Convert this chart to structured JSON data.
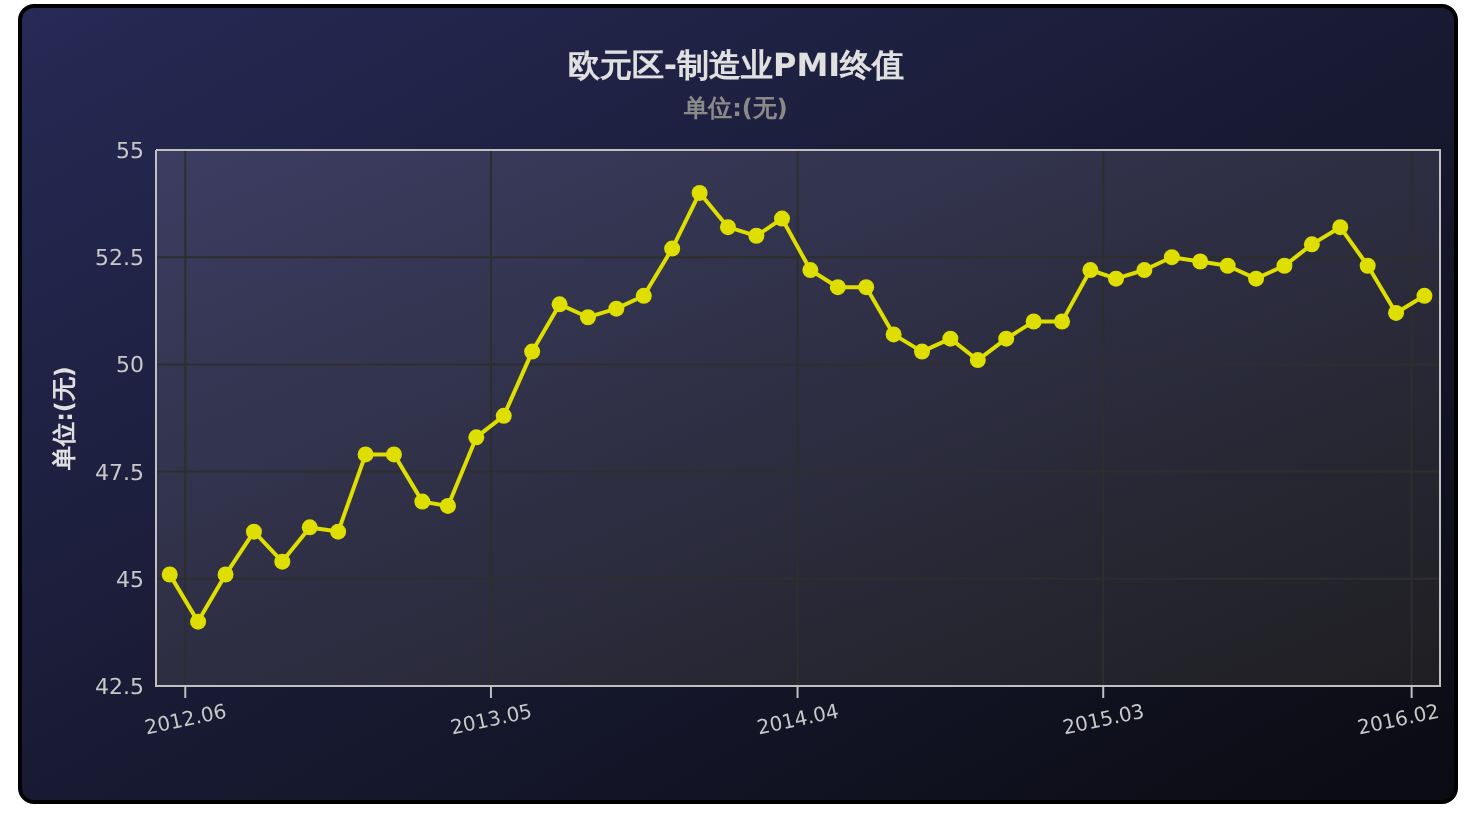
{
  "chart_data": {
    "type": "line",
    "title": "欧元区-制造业PMI终值",
    "subtitle": "单位:(无)",
    "ylabel": "单位:(无)",
    "x": [
      "2012-05-15",
      "2012-06-15",
      "2012-07-15",
      "2012-08-15",
      "2012-09-15",
      "2012-10-15",
      "2012-11-15",
      "2012-12-15",
      "2013-01-15",
      "2013-02-15",
      "2013-03-15",
      "2013-04-15",
      "2013-05-15",
      "2013-06-15",
      "2013-07-15",
      "2013-08-15",
      "2013-09-15",
      "2013-10-15",
      "2013-11-15",
      "2013-12-15",
      "2014-01-15",
      "2014-02-15",
      "2014-03-15",
      "2014-04-15",
      "2014-05-15",
      "2014-06-15",
      "2014-07-15",
      "2014-08-15",
      "2014-09-15",
      "2014-10-15",
      "2014-11-15",
      "2014-12-15",
      "2015-01-15",
      "2015-02-15",
      "2015-03-15",
      "2015-04-15",
      "2015-05-15",
      "2015-06-15",
      "2015-07-15",
      "2015-08-15",
      "2015-09-15",
      "2015-10-15",
      "2015-11-15",
      "2015-12-15",
      "2016-01-15",
      "2016-02-15"
    ],
    "series": [
      {
        "color": "#dede00",
        "values": [
          45.1,
          44.0,
          45.1,
          46.1,
          45.4,
          46.2,
          46.1,
          47.9,
          47.9,
          46.8,
          46.7,
          48.3,
          48.8,
          50.3,
          51.4,
          51.1,
          51.3,
          51.6,
          52.7,
          54.0,
          53.2,
          53.0,
          53.4,
          52.2,
          51.8,
          51.8,
          50.7,
          50.3,
          50.6,
          50.1,
          50.6,
          51.0,
          51.0,
          52.2,
          52.0,
          52.2,
          52.5,
          52.4,
          52.3,
          52.0,
          52.3,
          52.8,
          53.2,
          52.3,
          51.2,
          51.6
        ]
      }
    ],
    "xlim": [
      "2012-04-30",
      "2016-03-03"
    ],
    "xticks": [
      {
        "value": "2012-06-01",
        "label": "2012.06"
      },
      {
        "value": "2013-05-01",
        "label": "2013.05"
      },
      {
        "value": "2014-04-01",
        "label": "2014.04"
      },
      {
        "value": "2015-03-01",
        "label": "2015.03"
      },
      {
        "value": "2016-02-01",
        "label": "2016.02"
      }
    ],
    "ylim": [
      42.5,
      55
    ],
    "yticks": [
      42.5,
      45,
      47.5,
      50,
      52.5,
      55
    ],
    "grid": true,
    "marker": "circle",
    "line_style": "solid"
  }
}
